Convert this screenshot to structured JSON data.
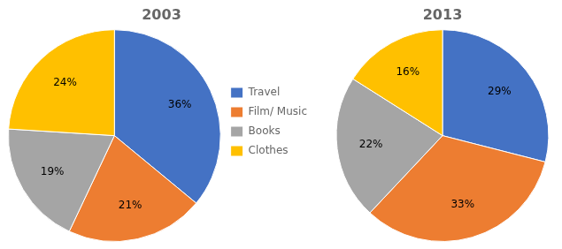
{
  "chart_data": [
    {
      "type": "pie",
      "title": "2003",
      "categories": [
        "Travel",
        "Film/ Music",
        "Books",
        "Clothes"
      ],
      "values": [
        36,
        21,
        19,
        24
      ],
      "value_labels": [
        "36%",
        "21%",
        "19%",
        "24%"
      ],
      "colors": [
        "#4472C4",
        "#ED7D31",
        "#A5A5A5",
        "#FFC000"
      ],
      "data_labels": true,
      "legend": "right"
    },
    {
      "type": "pie",
      "title": "2013",
      "categories": [
        "Travel",
        "Film/ Music",
        "Books",
        "Clothes"
      ],
      "values": [
        29,
        33,
        22,
        16
      ],
      "value_labels": [
        "29%",
        "33%",
        "22%",
        "16%"
      ],
      "colors": [
        "#4472C4",
        "#ED7D31",
        "#A5A5A5",
        "#FFC000"
      ],
      "data_labels": true
    }
  ]
}
